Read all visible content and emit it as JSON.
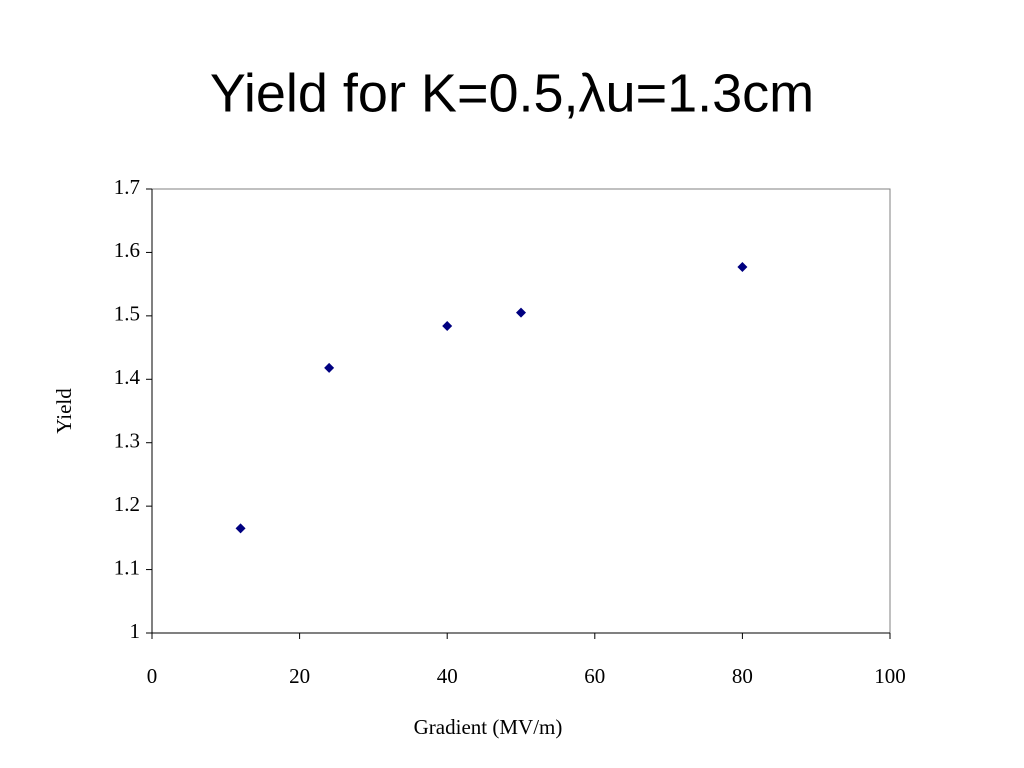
{
  "chart_data": {
    "type": "scatter",
    "title": "Yield for K=0.5,λu=1.3cm",
    "x_label": "Gradient (MV/m)",
    "y_label": "Yield",
    "x": [
      12,
      24,
      40,
      50,
      80
    ],
    "values": [
      1.165,
      1.418,
      1.484,
      1.505,
      1.577
    ],
    "color": "#000080",
    "xlim": [
      0,
      100
    ],
    "xticks": [
      0,
      20,
      40,
      60,
      80,
      100
    ],
    "ylim": [
      1,
      1.7
    ],
    "yticks": [
      1,
      1.1,
      1.2,
      1.3,
      1.4,
      1.5,
      1.6,
      1.7
    ],
    "grid": false
  }
}
